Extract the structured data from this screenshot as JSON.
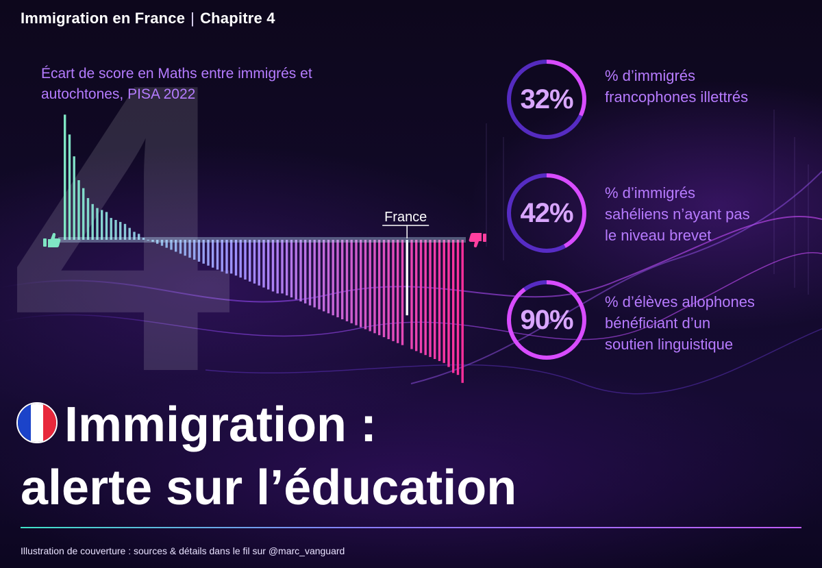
{
  "header": {
    "left": "Immigration en France",
    "separator": "|",
    "right": "Chapitre 4"
  },
  "background_digit": "4",
  "chart_data": {
    "type": "bar",
    "title": "Écart de score en Maths entre immigrés et autochtones, PISA 2022",
    "xlabel": "",
    "ylabel": "",
    "highlight_label": "France",
    "highlight_index": 74,
    "axis_icons": {
      "left": "thumbs-up-icon",
      "right": "thumbs-down-icon"
    },
    "values": [
      63,
      53,
      42,
      30,
      26,
      21,
      18,
      16,
      15,
      14,
      11,
      10,
      9,
      8,
      6,
      4,
      3,
      1,
      0,
      -1,
      -2,
      -3,
      -4,
      -5,
      -6,
      -7,
      -8,
      -9,
      -10,
      -11,
      -12,
      -13,
      -14,
      -15,
      -16,
      -17,
      -17,
      -18,
      -19,
      -20,
      -21,
      -22,
      -23,
      -24,
      -25,
      -26,
      -27,
      -27,
      -28,
      -29,
      -30,
      -31,
      -32,
      -33,
      -34,
      -35,
      -36,
      -37,
      -38,
      -39,
      -40,
      -41,
      -42,
      -43,
      -44,
      -45,
      -46,
      -47,
      -48,
      -49,
      -50,
      -51,
      -52,
      -53,
      -38,
      -55,
      -56,
      -57,
      -58,
      -59,
      -60,
      -61,
      -62,
      -64,
      -67,
      -68,
      -72
    ],
    "colors": {
      "positive": "#7fe6c4",
      "middle": "#9f8cff",
      "negative": "#ff2f9b",
      "highlight": "#ffffff"
    }
  },
  "stats": [
    {
      "value": "32%",
      "fraction": 0.32,
      "label_lines": [
        "% d’immigrés",
        "francophones illettrés"
      ]
    },
    {
      "value": "42%",
      "fraction": 0.42,
      "label_lines": [
        "% d’immigrés",
        "sahéliens n’ayant pas",
        "le niveau brevet"
      ]
    },
    {
      "value": "90%",
      "fraction": 0.9,
      "label_lines": [
        "% d’élèves allophones",
        "bénéficiant d’un",
        "soutien linguistique"
      ]
    }
  ],
  "title": {
    "line1": "Immigration :",
    "line2": "alerte sur l’éducation",
    "flag_colors": [
      "#1b43c9",
      "#ffffff",
      "#e8283b"
    ]
  },
  "footer": "Illustration de couverture : sources & détails dans le fil sur @marc_vanguard"
}
